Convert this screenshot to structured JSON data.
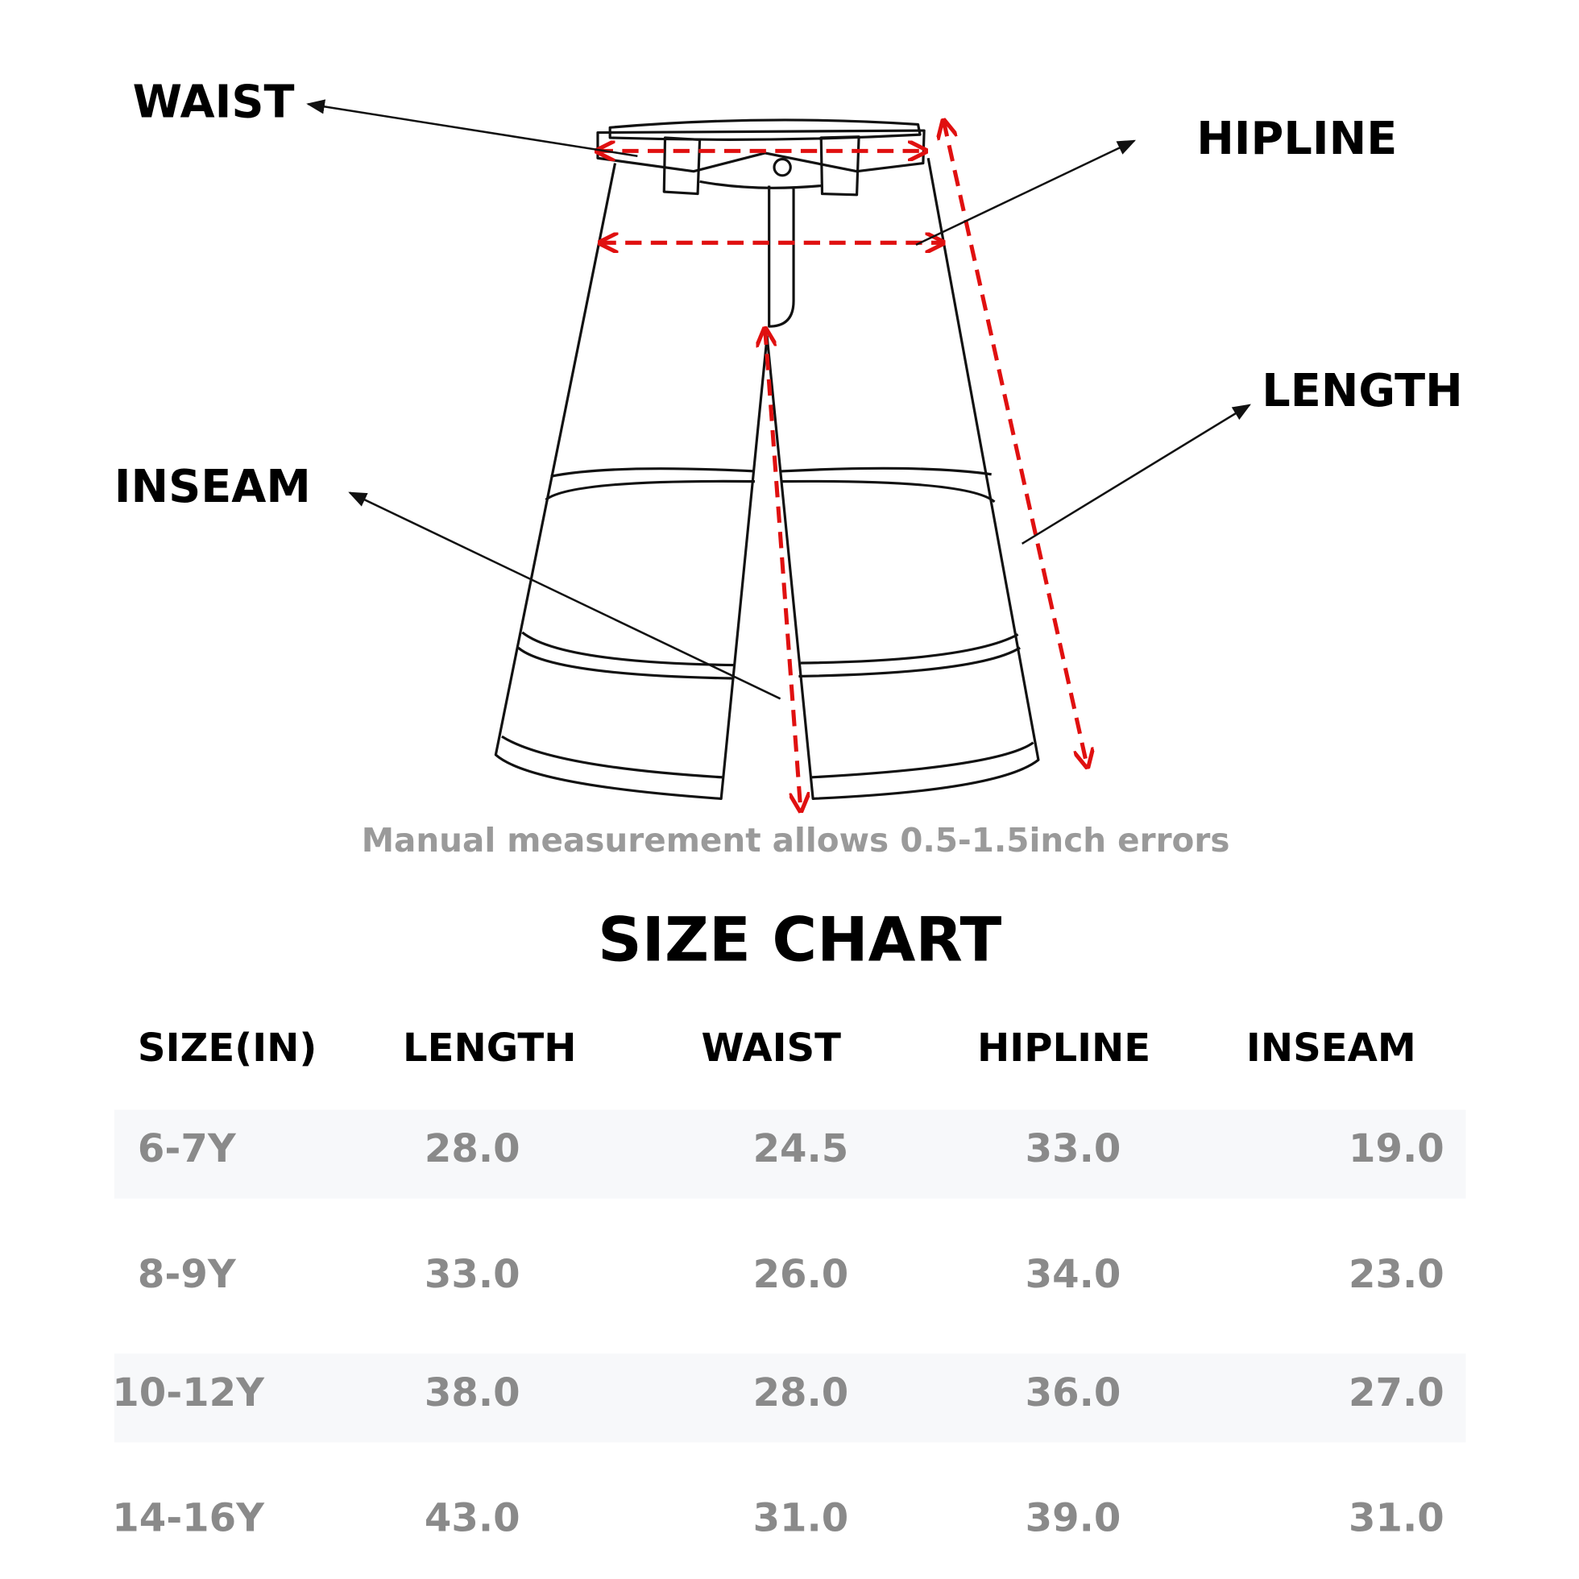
{
  "diagram": {
    "labels": {
      "waist": "WAIST",
      "hipline": "HIPLINE",
      "length": "LENGTH",
      "inseam": "INSEAM"
    },
    "note": "Manual measurement allows 0.5-1.5inch errors"
  },
  "table": {
    "title": "SIZE CHART",
    "headers": [
      "SIZE(IN)",
      "LENGTH",
      "WAIST",
      "HIPLINE",
      "INSEAM"
    ],
    "rows": [
      [
        "6-7Y",
        "28.0",
        "24.5",
        "33.0",
        "19.0"
      ],
      [
        "8-9Y",
        "33.0",
        "26.0",
        "34.0",
        "23.0"
      ],
      [
        "10-12Y",
        "38.0",
        "28.0",
        "36.0",
        "27.0"
      ],
      [
        "14-16Y",
        "43.0",
        "31.0",
        "39.0",
        "31.0"
      ]
    ]
  }
}
